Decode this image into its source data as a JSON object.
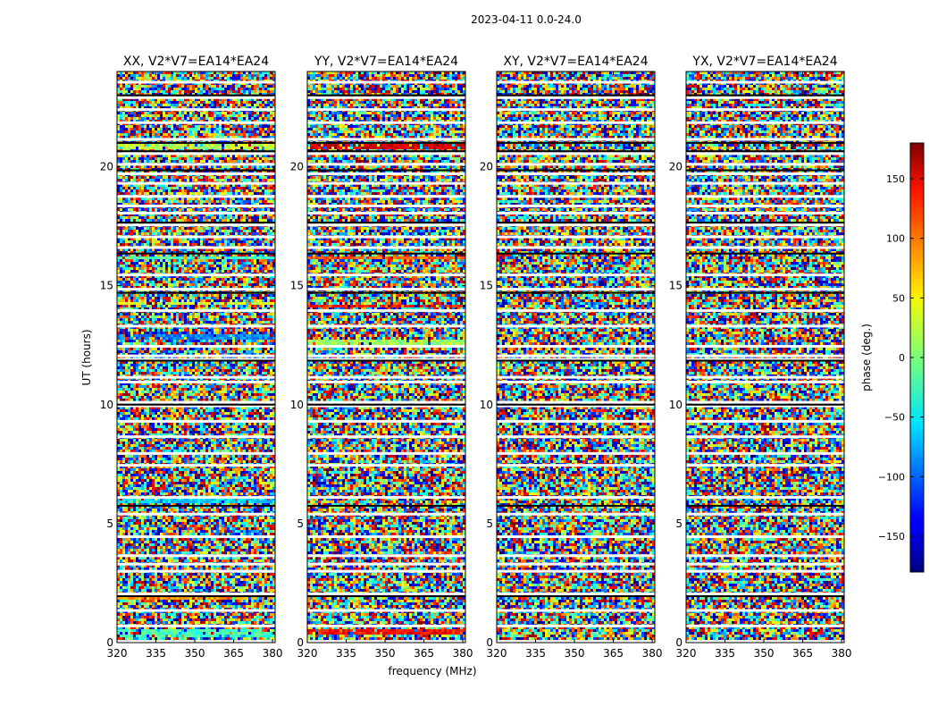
{
  "figure": {
    "suptitle": "2023-04-11 0.0-24.0"
  },
  "chart_data": {
    "type": "heatmap",
    "title": "2023-04-11 0.0-24.0",
    "xlabel": "frequency (MHz)",
    "ylabel": "UT (hours)",
    "xlim": [
      320,
      381
    ],
    "ylim": [
      0,
      24
    ],
    "xticks": [
      320,
      335,
      350,
      365,
      380
    ],
    "yticks": [
      0,
      5,
      10,
      15,
      20
    ],
    "colorbar": {
      "label": "phase (deg.)",
      "range": [
        -180,
        180
      ],
      "ticks": [
        150,
        100,
        50,
        0,
        -50,
        -100,
        -150
      ],
      "colormap": "jet"
    },
    "grid": false,
    "panels": [
      {
        "title": "XX, V2*V7=EA14*EA24",
        "strong_bands": [
          {
            "t0": 20.7,
            "t1": 20.95,
            "phase": 20
          },
          {
            "t0": 14.2,
            "t1": 14.35,
            "phase": 30
          },
          {
            "t0": 16.1,
            "t1": 16.2,
            "phase": -20
          },
          {
            "t0": 12.7,
            "t1": 12.95,
            "phase": -90
          },
          {
            "t0": 5.85,
            "t1": 6.05,
            "phase": -60
          },
          {
            "t0": 1.85,
            "t1": 2.0,
            "phase": 80
          },
          {
            "t0": 0.3,
            "t1": 0.55,
            "phase": -20
          }
        ]
      },
      {
        "title": "YY, V2*V7=EA14*EA24",
        "strong_bands": [
          {
            "t0": 20.7,
            "t1": 20.95,
            "phase": 150
          },
          {
            "t0": 16.1,
            "t1": 16.25,
            "phase": 100
          },
          {
            "t0": 14.1,
            "t1": 14.25,
            "phase": 130
          },
          {
            "t0": 12.5,
            "t1": 12.75,
            "phase": 10
          },
          {
            "t0": 1.9,
            "t1": 2.1,
            "phase": -160
          },
          {
            "t0": 0.4,
            "t1": 0.6,
            "phase": 130
          }
        ]
      },
      {
        "title": "XY, V2*V7=EA14*EA24",
        "strong_bands": []
      },
      {
        "title": "YX, V2*V7=EA14*EA24",
        "strong_bands": []
      }
    ],
    "gaps_hours": [
      0.05,
      0.7,
      1.35,
      2.05,
      3.0,
      3.3,
      3.65,
      4.45,
      5.4,
      6.1,
      7.45,
      7.95,
      8.65,
      9.3,
      9.95,
      10.1,
      10.95,
      11.15,
      11.9,
      12.05,
      12.45,
      13.3,
      13.95,
      14.85,
      15.45,
      16.6,
      17.05,
      17.55,
      18.05,
      18.35,
      18.75,
      19.3,
      19.7,
      20.1,
      20.55,
      21.15,
      21.85,
      22.4,
      22.9,
      23.55
    ],
    "black_lines_hours": [
      1.95,
      5.75,
      10.0,
      11.85,
      14.7,
      16.35,
      17.65,
      19.85,
      20.65,
      21.0,
      23.0
    ]
  }
}
